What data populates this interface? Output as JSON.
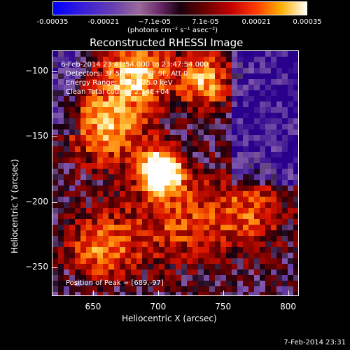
{
  "chart_data": {
    "type": "heatmap",
    "title": "Reconstructed RHESSI Image",
    "xlabel": "Heliocentric X (arcsec)",
    "ylabel": "Heliocentric Y (arcsec)",
    "xlim": [
      618,
      808
    ],
    "ylim": [
      -272,
      -84
    ],
    "x_ticks": [
      650,
      700,
      750,
      800
    ],
    "x_tick_labels": [
      "650",
      "700",
      "750",
      "800"
    ],
    "y_ticks": [
      -100,
      -150,
      -200,
      -250
    ],
    "y_tick_labels": [
      "−100",
      "−150",
      "−200",
      "−250"
    ],
    "colorbar": {
      "range": [
        -0.00035,
        0.00035
      ],
      "tick_labels": [
        "-0.00035",
        "-0.00021",
        "−7.1e-05",
        "7.1e-05",
        "0.00021",
        "0.00035"
      ],
      "units": "(photons cm⁻² s⁻¹ asec⁻²)"
    },
    "peak": {
      "x": 689,
      "y": -97
    },
    "bright_source": {
      "x": 708,
      "y": -173
    },
    "annotations": [
      "6-Feb-2014 23:41:54.000 to 23:47:54.000",
      "Detectors: 3F 5F 6F 7F 8F 9F, Att 0",
      "Energy Range: 12.0 - 25.0 keV",
      "Clean    Total counts: 2.14E+04",
      "Position of Peak = [689,-97]"
    ]
  },
  "footer": {
    "timestamp": "7-Feb-2014 23:31"
  }
}
